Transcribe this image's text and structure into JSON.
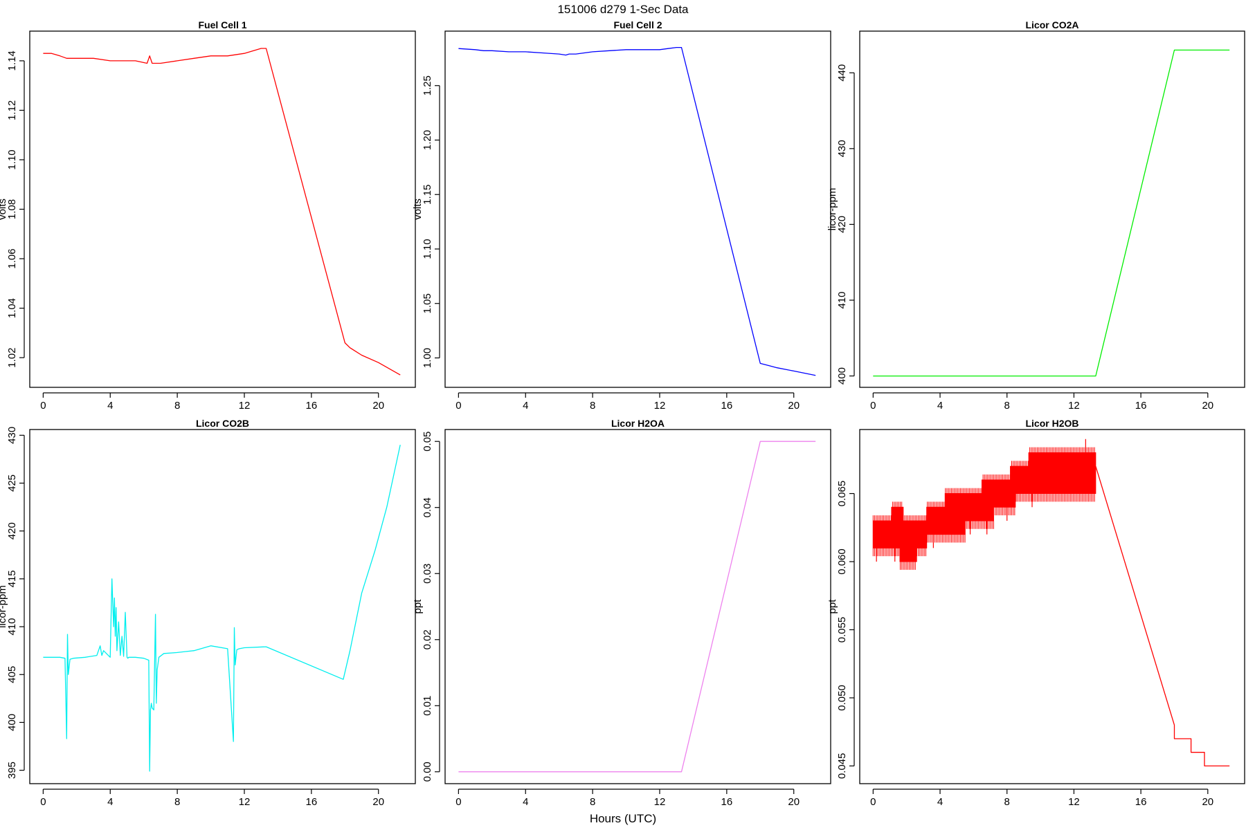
{
  "figure_title": "151006   d279   1-Sec Data",
  "figure_xlabel": "Hours (UTC)",
  "chart_data": [
    {
      "type": "line",
      "title": "Fuel Cell 1",
      "xlabel": "",
      "ylabel": "volts",
      "color": "#ff0000",
      "xlim": [
        -0.8,
        22.2
      ],
      "ylim": [
        1.008,
        1.152
      ],
      "xticks": [
        0,
        4,
        8,
        12,
        16,
        20
      ],
      "yticks": [
        1.02,
        1.04,
        1.06,
        1.08,
        1.1,
        1.12,
        1.14
      ],
      "ytick_labels": [
        "1.02",
        "1.04",
        "1.06",
        "1.08",
        "1.10",
        "1.12",
        "1.14"
      ],
      "series": [
        {
          "x": [
            0,
            0.5,
            1,
            1.4,
            2,
            3,
            4,
            5,
            5.5,
            6.2,
            6.35,
            6.5,
            7,
            8,
            9,
            10,
            11,
            12,
            12.5,
            13,
            13.3,
            18,
            18.3,
            19,
            20,
            21.3
          ],
          "y": [
            1.143,
            1.143,
            1.142,
            1.141,
            1.141,
            1.141,
            1.14,
            1.14,
            1.14,
            1.139,
            1.142,
            1.139,
            1.139,
            1.14,
            1.141,
            1.142,
            1.142,
            1.143,
            1.144,
            1.145,
            1.145,
            1.026,
            1.024,
            1.021,
            1.018,
            1.013
          ]
        }
      ]
    },
    {
      "type": "line",
      "title": "Fuel Cell 2",
      "xlabel": "",
      "ylabel": "volts",
      "color": "#0000ff",
      "xlim": [
        -0.8,
        22.2
      ],
      "ylim": [
        0.973,
        1.3
      ],
      "xticks": [
        0,
        4,
        8,
        12,
        16,
        20
      ],
      "yticks": [
        1.0,
        1.05,
        1.1,
        1.15,
        1.2,
        1.25
      ],
      "ytick_labels": [
        "1.00",
        "1.05",
        "1.10",
        "1.15",
        "1.20",
        "1.25"
      ],
      "series": [
        {
          "x": [
            0,
            1,
            1.5,
            2,
            3,
            4,
            5,
            6,
            6.4,
            6.6,
            7,
            8,
            9,
            10,
            11,
            12,
            12.5,
            13,
            13.3,
            18,
            18.5,
            19,
            20,
            21.3
          ],
          "y": [
            1.284,
            1.283,
            1.282,
            1.282,
            1.281,
            1.281,
            1.28,
            1.279,
            1.278,
            1.279,
            1.279,
            1.281,
            1.282,
            1.283,
            1.283,
            1.283,
            1.284,
            1.285,
            1.285,
            0.995,
            0.993,
            0.991,
            0.988,
            0.984
          ]
        }
      ]
    },
    {
      "type": "line",
      "title": "Licor CO2A",
      "xlabel": "",
      "ylabel": "licor-ppm",
      "color": "#00ee00",
      "xlim": [
        -0.8,
        22.2
      ],
      "ylim": [
        398.5,
        445.5
      ],
      "xticks": [
        0,
        4,
        8,
        12,
        16,
        20
      ],
      "yticks": [
        400,
        410,
        420,
        430,
        440
      ],
      "ytick_labels": [
        "400",
        "410",
        "420",
        "430",
        "440"
      ],
      "series": [
        {
          "x": [
            0,
            13.3,
            18,
            21.3
          ],
          "y": [
            400,
            400,
            443,
            443
          ]
        }
      ]
    },
    {
      "type": "line",
      "title": "Licor CO2B",
      "xlabel": "",
      "ylabel": "licor-ppm",
      "color": "#00eeee",
      "xlim": [
        -0.8,
        22.2
      ],
      "ylim": [
        393.6,
        430.6
      ],
      "xticks": [
        0,
        4,
        8,
        12,
        16,
        20
      ],
      "yticks": [
        395,
        400,
        405,
        410,
        415,
        420,
        425,
        430
      ],
      "ytick_labels": [
        "395",
        "400",
        "405",
        "410",
        "415",
        "420",
        "425",
        "430"
      ],
      "series": [
        {
          "x": [
            0,
            1.0,
            1.3,
            1.4,
            1.45,
            1.5,
            1.6,
            1.8,
            2.5,
            3.2,
            3.4,
            3.5,
            3.6,
            4.0,
            4.1,
            4.2,
            4.25,
            4.3,
            4.35,
            4.4,
            4.5,
            4.6,
            4.7,
            4.8,
            4.9,
            5.0,
            5.05,
            5.1,
            5.2,
            5.3,
            5.5,
            6.0,
            6.3,
            6.35,
            6.4,
            6.45,
            6.5,
            6.6,
            6.7,
            6.75,
            6.8,
            6.9,
            7.2,
            8.0,
            8.5,
            9.0,
            10.0,
            11.0,
            11.35,
            11.4,
            11.45,
            11.55,
            11.7,
            12.0,
            13.3,
            17.9,
            18.3,
            19.0,
            19.8,
            20.5,
            21.3
          ],
          "y": [
            406.8,
            406.8,
            406.7,
            398.3,
            409.2,
            405.0,
            406.6,
            406.7,
            406.8,
            407.0,
            408.0,
            407.0,
            407.5,
            406.8,
            415.0,
            410.0,
            413.0,
            409.0,
            412.0,
            407.5,
            410.5,
            407.0,
            409.0,
            406.9,
            411.5,
            406.8,
            406.7,
            406.8,
            406.8,
            406.8,
            406.8,
            406.7,
            406.5,
            394.9,
            401.3,
            402.0,
            401.5,
            401.3,
            411.3,
            402.0,
            405.5,
            406.8,
            407.2,
            407.3,
            407.4,
            407.5,
            408.0,
            407.7,
            398.0,
            409.9,
            406.0,
            407.6,
            407.7,
            407.8,
            407.9,
            404.5,
            407.5,
            413.5,
            418.0,
            422.5,
            429.0
          ]
        }
      ]
    },
    {
      "type": "line",
      "title": "Licor H2OA",
      "xlabel": "",
      "ylabel": "ppt",
      "color": "#ee82ee",
      "xlim": [
        -0.8,
        22.2
      ],
      "ylim": [
        -0.0018,
        0.0518
      ],
      "xticks": [
        0,
        4,
        8,
        12,
        16,
        20
      ],
      "yticks": [
        0.0,
        0.01,
        0.02,
        0.03,
        0.04,
        0.05
      ],
      "ytick_labels": [
        "0.00",
        "0.01",
        "0.02",
        "0.03",
        "0.04",
        "0.05"
      ],
      "series": [
        {
          "x": [
            0,
            13.3,
            18,
            21.3
          ],
          "y": [
            0.0,
            0.0,
            0.05,
            0.05
          ]
        }
      ]
    },
    {
      "type": "line",
      "title": "Licor H2OB",
      "xlabel": "",
      "ylabel": "ppt",
      "color": "#ff0000",
      "xlim": [
        -0.8,
        22.2
      ],
      "ylim": [
        0.0437,
        0.0697
      ],
      "xticks": [
        0,
        4,
        8,
        12,
        16,
        20
      ],
      "yticks": [
        0.045,
        0.05,
        0.055,
        0.06,
        0.065
      ],
      "ytick_labels": [
        "0.045",
        "0.050",
        "0.055",
        "0.060",
        "0.065"
      ],
      "band": {
        "x_start": 0,
        "x_end": 13.3,
        "lower": [
          [
            0,
            0.061
          ],
          [
            1.6,
            0.061
          ],
          [
            1.6,
            0.06
          ],
          [
            2.6,
            0.06
          ],
          [
            2.6,
            0.061
          ],
          [
            3.2,
            0.061
          ],
          [
            3.2,
            0.062
          ],
          [
            5.5,
            0.062
          ],
          [
            5.5,
            0.063
          ],
          [
            7.2,
            0.063
          ],
          [
            7.2,
            0.064
          ],
          [
            8.5,
            0.064
          ],
          [
            8.5,
            0.065
          ],
          [
            13.3,
            0.065
          ]
        ],
        "upper": [
          [
            0,
            0.063
          ],
          [
            1.1,
            0.063
          ],
          [
            1.1,
            0.064
          ],
          [
            1.8,
            0.064
          ],
          [
            1.8,
            0.063
          ],
          [
            3.2,
            0.063
          ],
          [
            3.2,
            0.064
          ],
          [
            4.3,
            0.064
          ],
          [
            4.3,
            0.065
          ],
          [
            6.5,
            0.065
          ],
          [
            6.5,
            0.066
          ],
          [
            8.2,
            0.066
          ],
          [
            8.2,
            0.067
          ],
          [
            9.3,
            0.067
          ],
          [
            9.3,
            0.068
          ],
          [
            13.3,
            0.068
          ]
        ],
        "spikes_low": [
          [
            0.2,
            0.06
          ],
          [
            1.3,
            0.06
          ],
          [
            2.1,
            0.06
          ],
          [
            2.4,
            0.06
          ],
          [
            3.6,
            0.061
          ],
          [
            5.8,
            0.062
          ],
          [
            6.8,
            0.062
          ],
          [
            8.0,
            0.063
          ],
          [
            9.5,
            0.064
          ],
          [
            10.5,
            0.065
          ]
        ],
        "spikes_high": [
          [
            12.7,
            0.069
          ],
          [
            11.5,
            0.068
          ],
          [
            9.9,
            0.068
          ]
        ]
      },
      "series": [
        {
          "x": [
            13.3,
            18.0,
            18.0,
            19.0,
            19.0,
            19.8,
            19.8,
            21.3
          ],
          "y": [
            0.067,
            0.048,
            0.047,
            0.047,
            0.046,
            0.046,
            0.045,
            0.045
          ]
        }
      ]
    }
  ]
}
